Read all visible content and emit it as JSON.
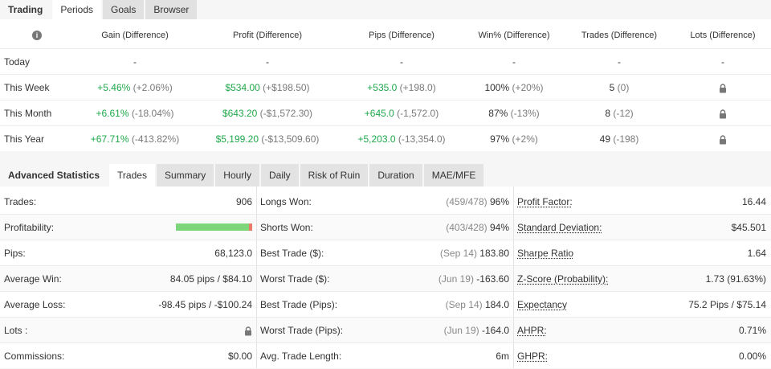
{
  "top_tabs": [
    "Trading",
    "Periods",
    "Goals",
    "Browser"
  ],
  "periods": {
    "headers": [
      "Gain (Difference)",
      "Profit (Difference)",
      "Pips (Difference)",
      "Win% (Difference)",
      "Trades (Difference)",
      "Lots (Difference)"
    ],
    "info_icon": "i",
    "rows": [
      {
        "label": "Today",
        "gain": "-",
        "gain_diff": "",
        "profit": "-",
        "profit_diff": "",
        "pips": "-",
        "pips_diff": "",
        "win": "-",
        "win_diff": "",
        "trades": "-",
        "trades_diff": "",
        "lots": "-"
      },
      {
        "label": "This Week",
        "gain": "+5.46%",
        "gain_diff": "(+2.06%)",
        "profit": "$534.00",
        "profit_diff": "(+$198.50)",
        "pips": "+535.0",
        "pips_diff": "(+198.0)",
        "win": "100%",
        "win_diff": "(+20%)",
        "trades": "5",
        "trades_diff": "(0)",
        "lots": "locked"
      },
      {
        "label": "This Month",
        "gain": "+6.61%",
        "gain_diff": "(-18.04%)",
        "profit": "$643.20",
        "profit_diff": "(-$1,572.30)",
        "pips": "+645.0",
        "pips_diff": "(-1,572.0)",
        "win": "87%",
        "win_diff": "(-13%)",
        "trades": "8",
        "trades_diff": "(-12)",
        "lots": "locked"
      },
      {
        "label": "This Year",
        "gain": "+67.71%",
        "gain_diff": "(-413.82%)",
        "profit": "$5,199.20",
        "profit_diff": "(-$13,509.60)",
        "pips": "+5,203.0",
        "pips_diff": "(-13,354.0)",
        "win": "97%",
        "win_diff": "(+2%)",
        "trades": "49",
        "trades_diff": "(-198)",
        "lots": "locked"
      }
    ]
  },
  "stat_tabs": [
    "Advanced Statistics",
    "Trades",
    "Summary",
    "Hourly",
    "Daily",
    "Risk of Ruin",
    "Duration",
    "MAE/MFE"
  ],
  "stats": {
    "col1": [
      {
        "label": "Trades:",
        "value": "906"
      },
      {
        "label": "Profitability:",
        "value": ""
      },
      {
        "label": "Pips:",
        "value": "68,123.0"
      },
      {
        "label": "Average Win:",
        "value": "84.05 pips / $84.10"
      },
      {
        "label": "Average Loss:",
        "value": "-98.45 pips / -$100.24"
      },
      {
        "label": "Lots :",
        "value": ""
      },
      {
        "label": "Commissions:",
        "value": "$0.00"
      }
    ],
    "profitability_fraction": 0.96,
    "col2": [
      {
        "label": "Longs Won:",
        "gray": "(459/478)",
        "value": "96%"
      },
      {
        "label": "Shorts Won:",
        "gray": "(403/428)",
        "value": "94%"
      },
      {
        "label": "Best Trade ($):",
        "gray": "(Sep 14)",
        "value": "183.80"
      },
      {
        "label": "Worst Trade ($):",
        "gray": "(Jun 19)",
        "value": "-163.60"
      },
      {
        "label": "Best Trade (Pips):",
        "gray": "(Sep 14)",
        "value": "184.0"
      },
      {
        "label": "Worst Trade (Pips):",
        "gray": "(Jun 19)",
        "value": "-164.0"
      },
      {
        "label": "Avg. Trade Length:",
        "gray": "",
        "value": "6m"
      }
    ],
    "col3": [
      {
        "label": "Profit Factor:",
        "value": "16.44"
      },
      {
        "label": "Standard Deviation:",
        "value": "$45.501"
      },
      {
        "label": "Sharpe Ratio",
        "value": "1.64"
      },
      {
        "label": "Z-Score (Probability):",
        "value": "1.73 (91.63%)"
      },
      {
        "label": "Expectancy",
        "value": "75.2 Pips / $75.14"
      },
      {
        "label": "AHPR:",
        "value": "0.71%"
      },
      {
        "label": "GHPR:",
        "value": "0.00%"
      }
    ]
  },
  "colors": {
    "positive": "#1fa84a",
    "bar_fill": "#7ed67a",
    "bar_rest": "#e87b6a"
  },
  "icons": {
    "lock": "lock-icon",
    "info": "info-icon"
  }
}
